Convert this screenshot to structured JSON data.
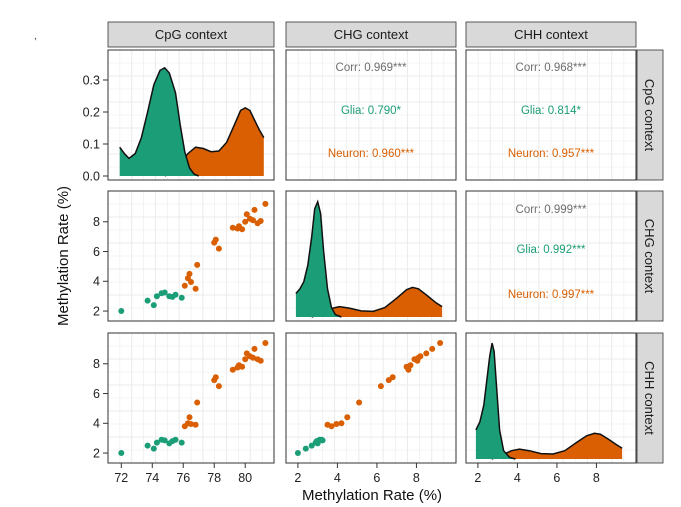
{
  "chart_data": {
    "type": "pairs",
    "xlabel": "Methylation Rate (%)",
    "ylabel": "Methylation Rate (%)",
    "contexts": [
      "CpG context",
      "CHG context",
      "CHH context"
    ],
    "colors": {
      "glia": "#1b9e77",
      "neuron": "#d95f02",
      "corr": "#6e6e6e",
      "strip": "#d9d9d9"
    },
    "axes": {
      "CpG": {
        "lim": [
          71.4,
          81.6
        ],
        "ticks": [
          72,
          74,
          76,
          78,
          80
        ]
      },
      "CHG": {
        "lim": [
          1.6,
          9.8
        ],
        "ticks": [
          2,
          4,
          6,
          8
        ]
      },
      "CHH": {
        "lim": [
          1.6,
          9.8
        ],
        "ticks": [
          2,
          4,
          6,
          8
        ]
      },
      "density": {
        "lim": [
          -0.02,
          0.375
        ],
        "ticks": [
          0.0,
          0.1,
          0.2,
          0.3
        ],
        "tick_labels": [
          "0.0",
          "0.1",
          "0.2",
          "0.3"
        ]
      }
    },
    "tick_labels": {
      "cpg": [
        "72",
        "74",
        "76",
        "78",
        "80"
      ],
      "chg": [
        "2",
        "4",
        "6",
        "8"
      ],
      "chh": [
        "2",
        "4",
        "6",
        "8"
      ]
    },
    "correlations": {
      "CpG_CHG": {
        "corr": "Corr: 0.969***",
        "glia": "Glia: 0.790*",
        "neuron": "Neuron: 0.960***"
      },
      "CpG_CHH": {
        "corr": "Corr: 0.968***",
        "glia": "Glia: 0.814*",
        "neuron": "Neuron: 0.957***"
      },
      "CHG_CHH": {
        "corr": "Corr: 0.999***",
        "glia": "Glia: 0.992***",
        "neuron": "Neuron: 0.997***"
      }
    },
    "density_curves": {
      "CpG": {
        "glia": [
          [
            71.9,
            0.09
          ],
          [
            72.2,
            0.07
          ],
          [
            72.5,
            0.055
          ],
          [
            72.9,
            0.07
          ],
          [
            73.3,
            0.12
          ],
          [
            73.7,
            0.2
          ],
          [
            74.1,
            0.285
          ],
          [
            74.5,
            0.33
          ],
          [
            74.8,
            0.338
          ],
          [
            75.1,
            0.322
          ],
          [
            75.5,
            0.26
          ],
          [
            75.8,
            0.16
          ],
          [
            76.1,
            0.075
          ],
          [
            76.4,
            0.025
          ],
          [
            76.7,
            0.006
          ],
          [
            77.0,
            0.0
          ]
        ],
        "neuron": [
          [
            74.8,
            0.0
          ],
          [
            75.3,
            0.012
          ],
          [
            75.8,
            0.04
          ],
          [
            76.3,
            0.07
          ],
          [
            76.8,
            0.09
          ],
          [
            77.3,
            0.086
          ],
          [
            77.8,
            0.076
          ],
          [
            78.3,
            0.078
          ],
          [
            78.8,
            0.105
          ],
          [
            79.3,
            0.16
          ],
          [
            79.7,
            0.205
          ],
          [
            80.0,
            0.213
          ],
          [
            80.3,
            0.205
          ],
          [
            80.6,
            0.175
          ],
          [
            80.9,
            0.145
          ],
          [
            81.2,
            0.12
          ]
        ]
      },
      "CHG": {
        "glia": [
          [
            1.9,
            0.05
          ],
          [
            2.1,
            0.06
          ],
          [
            2.3,
            0.075
          ],
          [
            2.5,
            0.11
          ],
          [
            2.7,
            0.17
          ],
          [
            2.85,
            0.23
          ],
          [
            3.0,
            0.245
          ],
          [
            3.15,
            0.22
          ],
          [
            3.3,
            0.14
          ],
          [
            3.5,
            0.06
          ],
          [
            3.7,
            0.02
          ],
          [
            3.9,
            0.005
          ],
          [
            4.2,
            0.0
          ]
        ],
        "neuron": [
          [
            2.7,
            0.0
          ],
          [
            3.2,
            0.008
          ],
          [
            3.7,
            0.018
          ],
          [
            4.1,
            0.022
          ],
          [
            4.6,
            0.019
          ],
          [
            5.2,
            0.013
          ],
          [
            5.8,
            0.012
          ],
          [
            6.4,
            0.02
          ],
          [
            7.0,
            0.04
          ],
          [
            7.5,
            0.058
          ],
          [
            7.8,
            0.063
          ],
          [
            8.1,
            0.06
          ],
          [
            8.5,
            0.047
          ],
          [
            9.0,
            0.03
          ],
          [
            9.3,
            0.022
          ]
        ]
      },
      "CHH": {
        "glia": [
          [
            1.9,
            0.07
          ],
          [
            2.1,
            0.09
          ],
          [
            2.3,
            0.13
          ],
          [
            2.45,
            0.19
          ],
          [
            2.6,
            0.25
          ],
          [
            2.72,
            0.28
          ],
          [
            2.82,
            0.26
          ],
          [
            2.95,
            0.17
          ],
          [
            3.1,
            0.07
          ],
          [
            3.3,
            0.02
          ],
          [
            3.6,
            0.004
          ],
          [
            3.9,
            0.0
          ]
        ],
        "neuron": [
          [
            2.7,
            0.0
          ],
          [
            3.2,
            0.009
          ],
          [
            3.7,
            0.02
          ],
          [
            4.1,
            0.024
          ],
          [
            4.6,
            0.02
          ],
          [
            5.2,
            0.013
          ],
          [
            5.8,
            0.012
          ],
          [
            6.4,
            0.02
          ],
          [
            7.0,
            0.04
          ],
          [
            7.5,
            0.056
          ],
          [
            7.9,
            0.062
          ],
          [
            8.2,
            0.06
          ],
          [
            8.6,
            0.048
          ],
          [
            9.0,
            0.035
          ],
          [
            9.3,
            0.026
          ]
        ]
      }
    },
    "samples": {
      "glia": [
        {
          "CpG": 72.0,
          "CHG": 2.0,
          "CHH": 2.0
        },
        {
          "CpG": 73.7,
          "CHG": 2.7,
          "CHH": 2.5
        },
        {
          "CpG": 74.1,
          "CHG": 2.4,
          "CHH": 2.3
        },
        {
          "CpG": 74.3,
          "CHG": 3.0,
          "CHH": 2.7
        },
        {
          "CpG": 74.6,
          "CHG": 3.2,
          "CHH": 2.9
        },
        {
          "CpG": 74.8,
          "CHG": 3.25,
          "CHH": 2.85
        },
        {
          "CpG": 75.1,
          "CHG": 3.0,
          "CHH": 2.65
        },
        {
          "CpG": 75.3,
          "CHG": 2.95,
          "CHH": 2.8
        },
        {
          "CpG": 75.5,
          "CHG": 3.1,
          "CHH": 2.9
        },
        {
          "CpG": 75.9,
          "CHG": 2.9,
          "CHH": 2.7
        }
      ],
      "neuron": [
        {
          "CpG": 76.1,
          "CHG": 3.7,
          "CHH": 3.8
        },
        {
          "CpG": 76.3,
          "CHG": 4.2,
          "CHH": 4.0
        },
        {
          "CpG": 76.4,
          "CHG": 4.5,
          "CHH": 4.4
        },
        {
          "CpG": 76.5,
          "CHG": 3.95,
          "CHH": 3.95
        },
        {
          "CpG": 76.8,
          "CHG": 3.5,
          "CHH": 3.9
        },
        {
          "CpG": 76.9,
          "CHG": 5.1,
          "CHH": 5.4
        },
        {
          "CpG": 78.0,
          "CHG": 6.6,
          "CHH": 6.9
        },
        {
          "CpG": 78.1,
          "CHG": 6.8,
          "CHH": 7.1
        },
        {
          "CpG": 78.3,
          "CHG": 6.2,
          "CHH": 6.5
        },
        {
          "CpG": 79.2,
          "CHG": 7.6,
          "CHH": 7.6
        },
        {
          "CpG": 79.5,
          "CHG": 7.55,
          "CHH": 7.75
        },
        {
          "CpG": 79.6,
          "CHG": 7.7,
          "CHH": 7.9
        },
        {
          "CpG": 79.8,
          "CHG": 7.5,
          "CHH": 7.8
        },
        {
          "CpG": 80.0,
          "CHG": 8.0,
          "CHH": 8.3
        },
        {
          "CpG": 80.1,
          "CHG": 8.5,
          "CHH": 8.7
        },
        {
          "CpG": 80.3,
          "CHG": 8.2,
          "CHH": 8.5
        },
        {
          "CpG": 80.5,
          "CHG": 8.1,
          "CHH": 8.4
        },
        {
          "CpG": 80.6,
          "CHG": 8.8,
          "CHH": 9.0
        },
        {
          "CpG": 80.8,
          "CHG": 7.9,
          "CHH": 8.3
        },
        {
          "CpG": 81.0,
          "CHG": 8.05,
          "CHH": 8.2
        },
        {
          "CpG": 81.3,
          "CHG": 9.2,
          "CHH": 9.4
        }
      ]
    }
  }
}
